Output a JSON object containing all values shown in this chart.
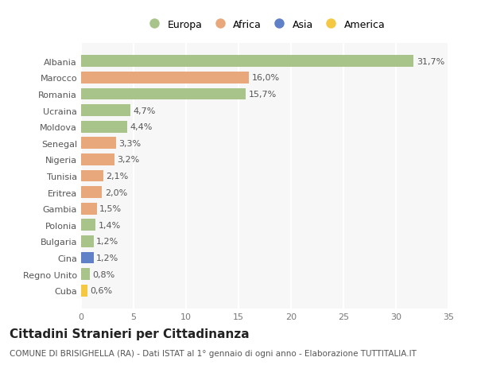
{
  "countries": [
    "Albania",
    "Marocco",
    "Romania",
    "Ucraina",
    "Moldova",
    "Senegal",
    "Nigeria",
    "Tunisia",
    "Eritrea",
    "Gambia",
    "Polonia",
    "Bulgaria",
    "Cina",
    "Regno Unito",
    "Cuba"
  ],
  "values": [
    31.7,
    16.0,
    15.7,
    4.7,
    4.4,
    3.3,
    3.2,
    2.1,
    2.0,
    1.5,
    1.4,
    1.2,
    1.2,
    0.8,
    0.6
  ],
  "labels": [
    "31,7%",
    "16,0%",
    "15,7%",
    "4,7%",
    "4,4%",
    "3,3%",
    "3,2%",
    "2,1%",
    "2,0%",
    "1,5%",
    "1,4%",
    "1,2%",
    "1,2%",
    "0,8%",
    "0,6%"
  ],
  "continents": [
    "Europa",
    "Africa",
    "Europa",
    "Europa",
    "Europa",
    "Africa",
    "Africa",
    "Africa",
    "Africa",
    "Africa",
    "Europa",
    "Europa",
    "Asia",
    "Europa",
    "America"
  ],
  "colors": {
    "Europa": "#a8c48a",
    "Africa": "#e8a87c",
    "Asia": "#6080c8",
    "America": "#f5c842"
  },
  "background_color": "#ffffff",
  "plot_bg_color": "#f7f7f7",
  "title": "Cittadini Stranieri per Cittadinanza",
  "subtitle": "COMUNE DI BRISIGHELLA (RA) - Dati ISTAT al 1° gennaio di ogni anno - Elaborazione TUTTITALIA.IT",
  "xlim": [
    0,
    35
  ],
  "xticks": [
    0,
    5,
    10,
    15,
    20,
    25,
    30,
    35
  ],
  "grid_color": "#ffffff",
  "bar_height": 0.72,
  "label_fontsize": 8,
  "title_fontsize": 11,
  "subtitle_fontsize": 7.5,
  "ytick_fontsize": 8,
  "legend_fontsize": 9
}
